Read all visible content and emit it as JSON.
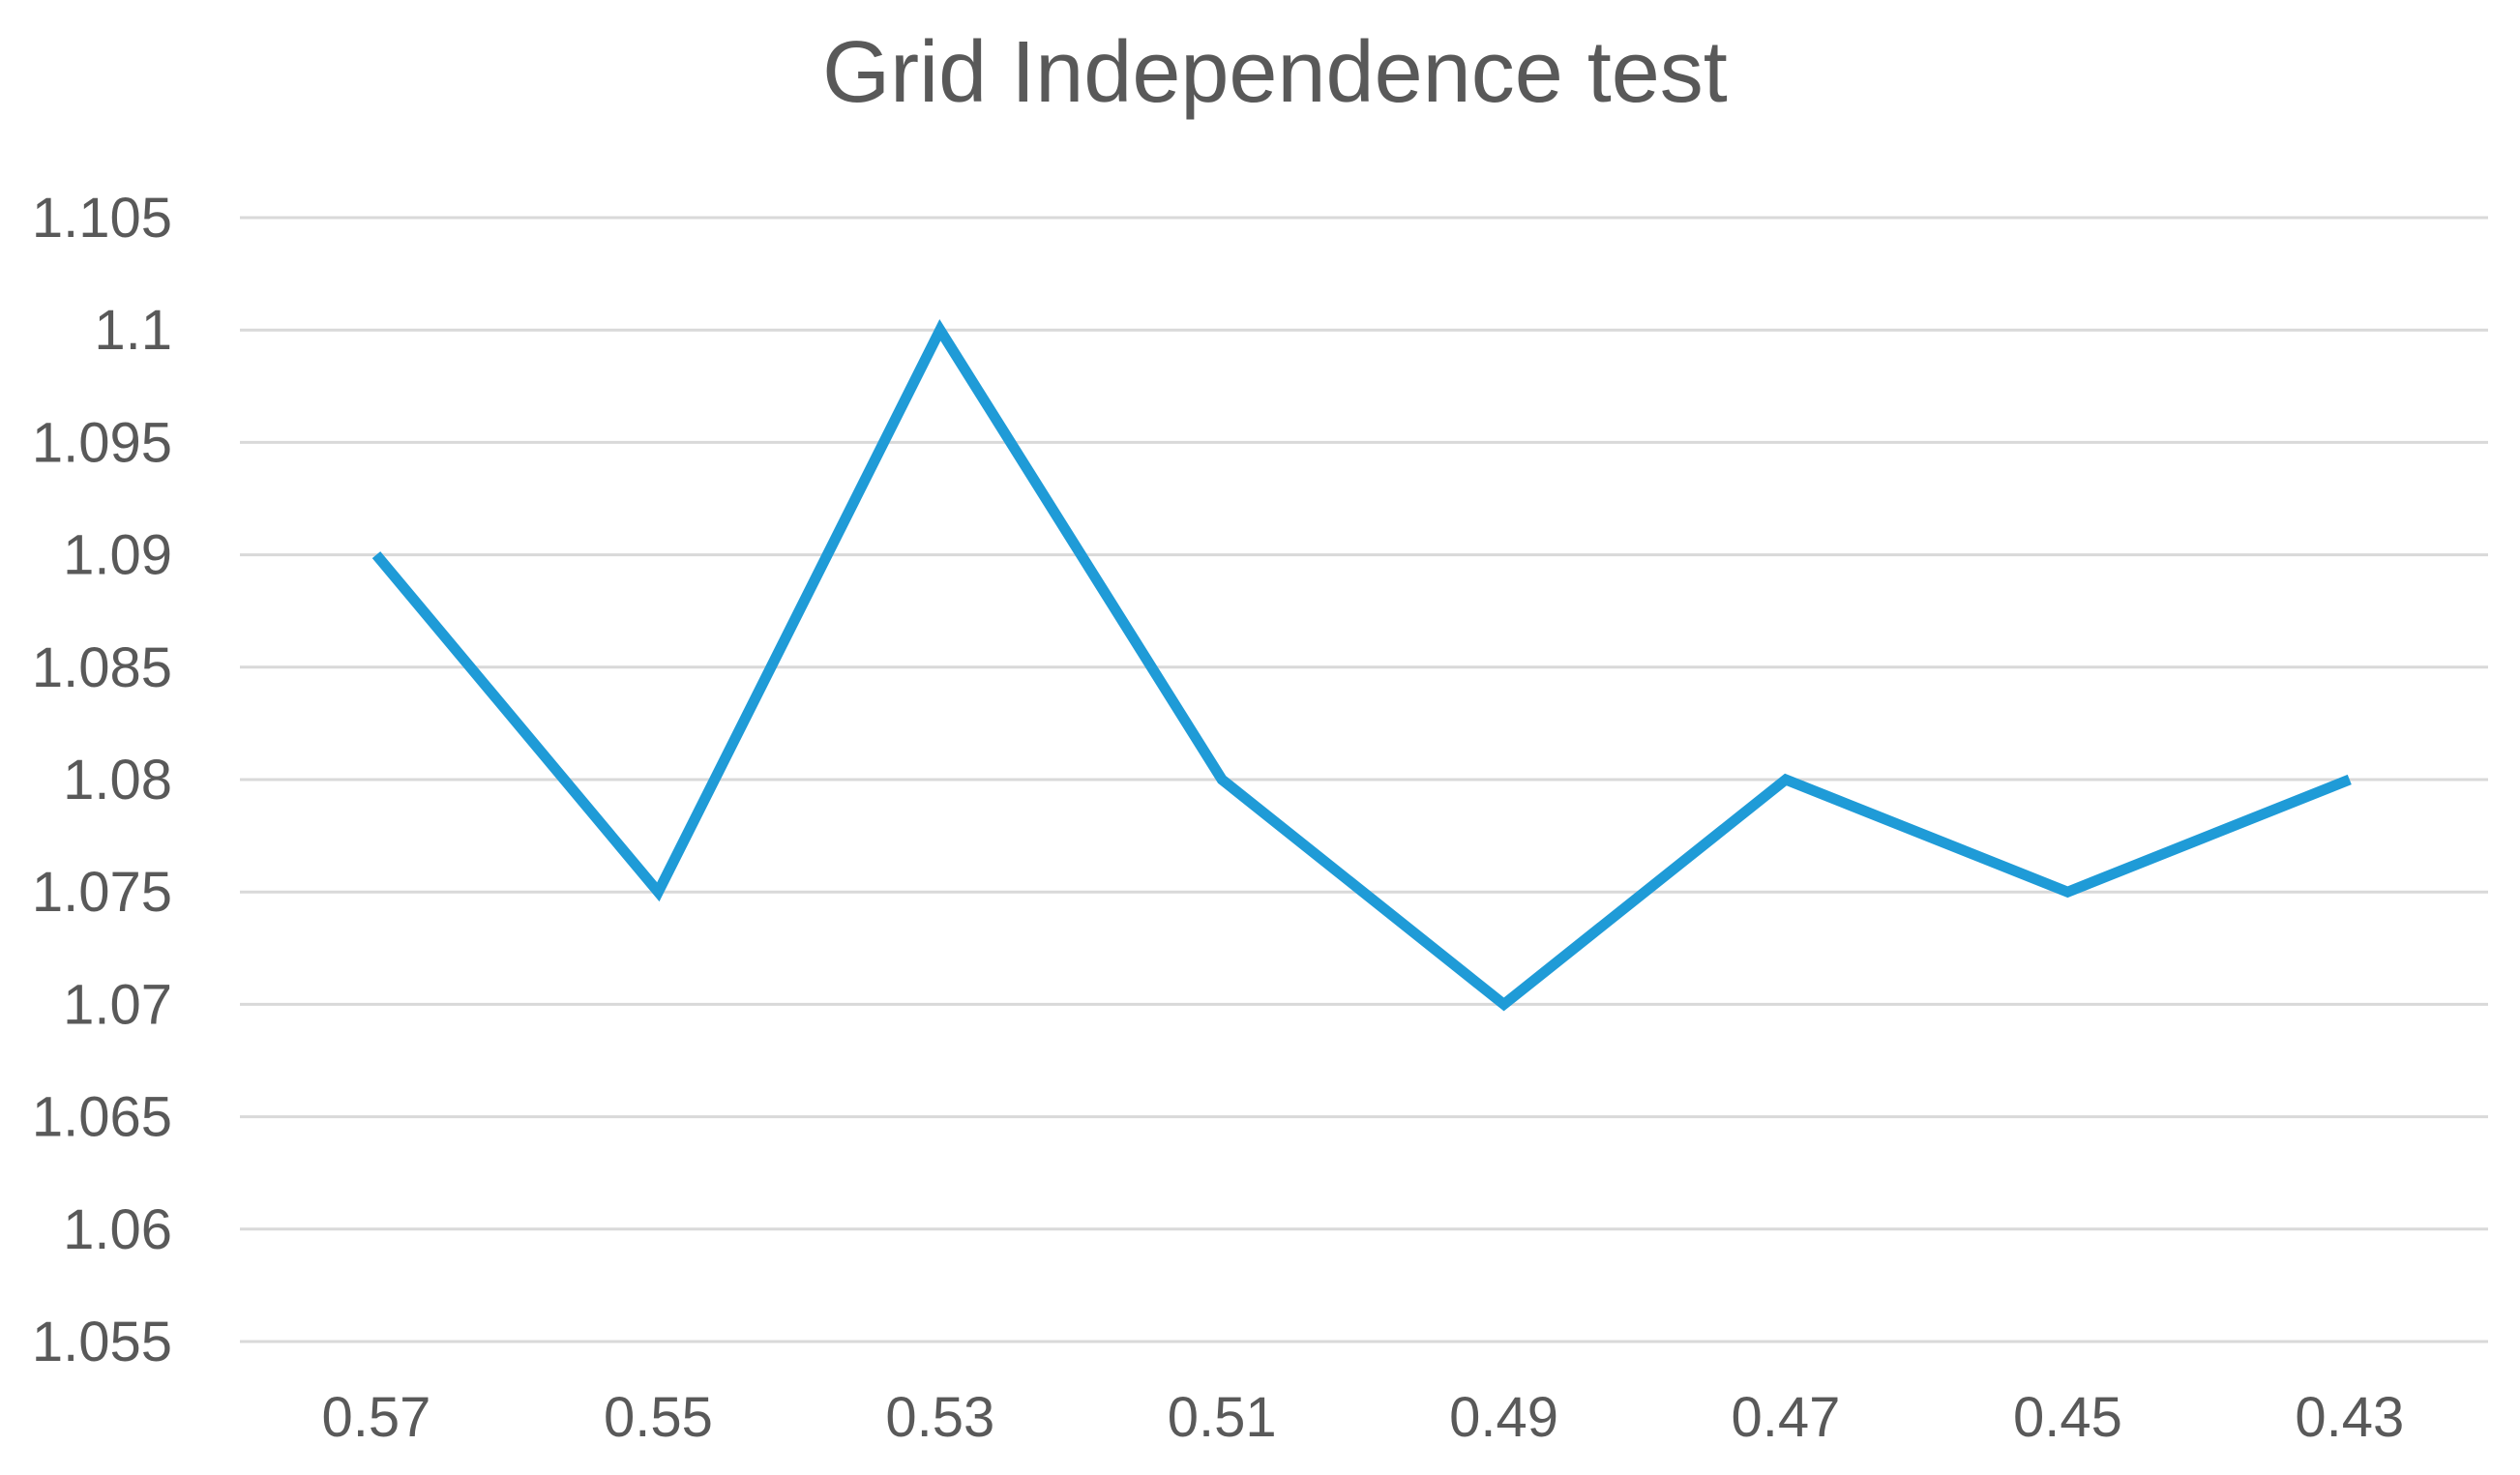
{
  "chart_data": {
    "type": "line",
    "title": "Grid Independence test",
    "xlabel": "",
    "ylabel": "",
    "categories": [
      "0.57",
      "0.55",
      "0.53",
      "0.51",
      "0.49",
      "0.47",
      "0.45",
      "0.43"
    ],
    "series": [
      {
        "values": [
          1.09,
          1.075,
          1.1,
          1.08,
          1.07,
          1.08,
          1.075,
          1.08
        ],
        "color": "#1f9bd7"
      }
    ],
    "ylim": [
      1.055,
      1.105
    ],
    "y_ticks": [
      "1.055",
      "1.06",
      "1.065",
      "1.07",
      "1.075",
      "1.08",
      "1.085",
      "1.09",
      "1.095",
      "1.1",
      "1.105"
    ],
    "grid": true,
    "legend": "none"
  }
}
